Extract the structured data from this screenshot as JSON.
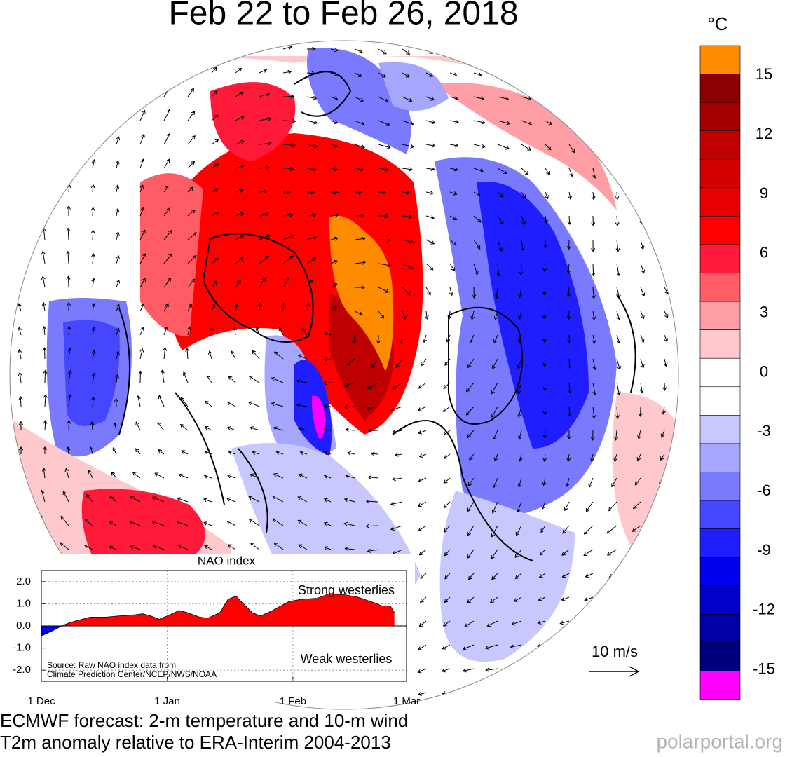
{
  "title": "Feb 22 to Feb 26, 2018",
  "colorbar": {
    "unit": "°C",
    "range": [
      -16.5,
      16.5
    ],
    "ticks": [
      15,
      12,
      9,
      6,
      3,
      0,
      -3,
      -6,
      -9,
      -12,
      -15
    ],
    "colors": [
      "#ff8c00",
      "#8b0000",
      "#a40000",
      "#bf0000",
      "#d40000",
      "#e80000",
      "#ff0000",
      "#ff1a3a",
      "#ff5c66",
      "#ff9ea4",
      "#ffc8cc",
      "#ffffff",
      "#ffffff",
      "#c8c8ff",
      "#a6a6ff",
      "#7a7aff",
      "#4646ff",
      "#1e1eff",
      "#0000ee",
      "#0000c8",
      "#0000a6",
      "#00007e",
      "#ff00ff"
    ]
  },
  "wind_scale_label": "10 m/s",
  "chart_data": {
    "type": "area",
    "title": "NAO index",
    "x": [
      0,
      3,
      5,
      7,
      10,
      12,
      16,
      19,
      23,
      25,
      27,
      29,
      31,
      34,
      36,
      39,
      41,
      44,
      46,
      48,
      49,
      52,
      54,
      57,
      61,
      64,
      68,
      71,
      75,
      78,
      82,
      84,
      86,
      87
    ],
    "values": [
      -0.45,
      -0.2,
      0.0,
      0.15,
      0.3,
      0.4,
      0.4,
      0.45,
      0.5,
      0.55,
      0.45,
      0.3,
      0.45,
      0.7,
      0.6,
      0.4,
      0.35,
      0.6,
      1.2,
      1.35,
      1.15,
      0.6,
      0.45,
      0.7,
      1.1,
      1.2,
      1.25,
      1.45,
      1.4,
      1.3,
      1.05,
      0.9,
      0.9,
      0.6
    ],
    "color": "#ff0000",
    "negative_color": "#0000ff",
    "xlim": [
      0,
      90
    ],
    "ylim": [
      -2.5,
      2.5
    ],
    "xticks": [
      {
        "value": 0,
        "label": "1 Dec"
      },
      {
        "value": 31,
        "label": "1 Jan"
      },
      {
        "value": 62,
        "label": "1 Feb"
      },
      {
        "value": 90,
        "label": "1 Mar"
      }
    ],
    "yticks": [
      {
        "value": 2,
        "label": "2.0"
      },
      {
        "value": 1,
        "label": "1.0"
      },
      {
        "value": 0,
        "label": "0.0"
      },
      {
        "value": -1,
        "label": "-1.0"
      },
      {
        "value": -2,
        "label": "-2.0"
      }
    ],
    "grid": true,
    "annotations": [
      "Strong westerlies",
      "Weak westerlies"
    ],
    "source": [
      "Source: Raw NAO index data from",
      "Climate Prediction Center/NCEP/NWS/NOAA"
    ]
  },
  "footer": [
    "ECMWF forecast: 2-m temperature and 10-m wind",
    "T2m anomaly relative to ERA-Interim 2004-2013"
  ],
  "watermark": "polarportal.org"
}
